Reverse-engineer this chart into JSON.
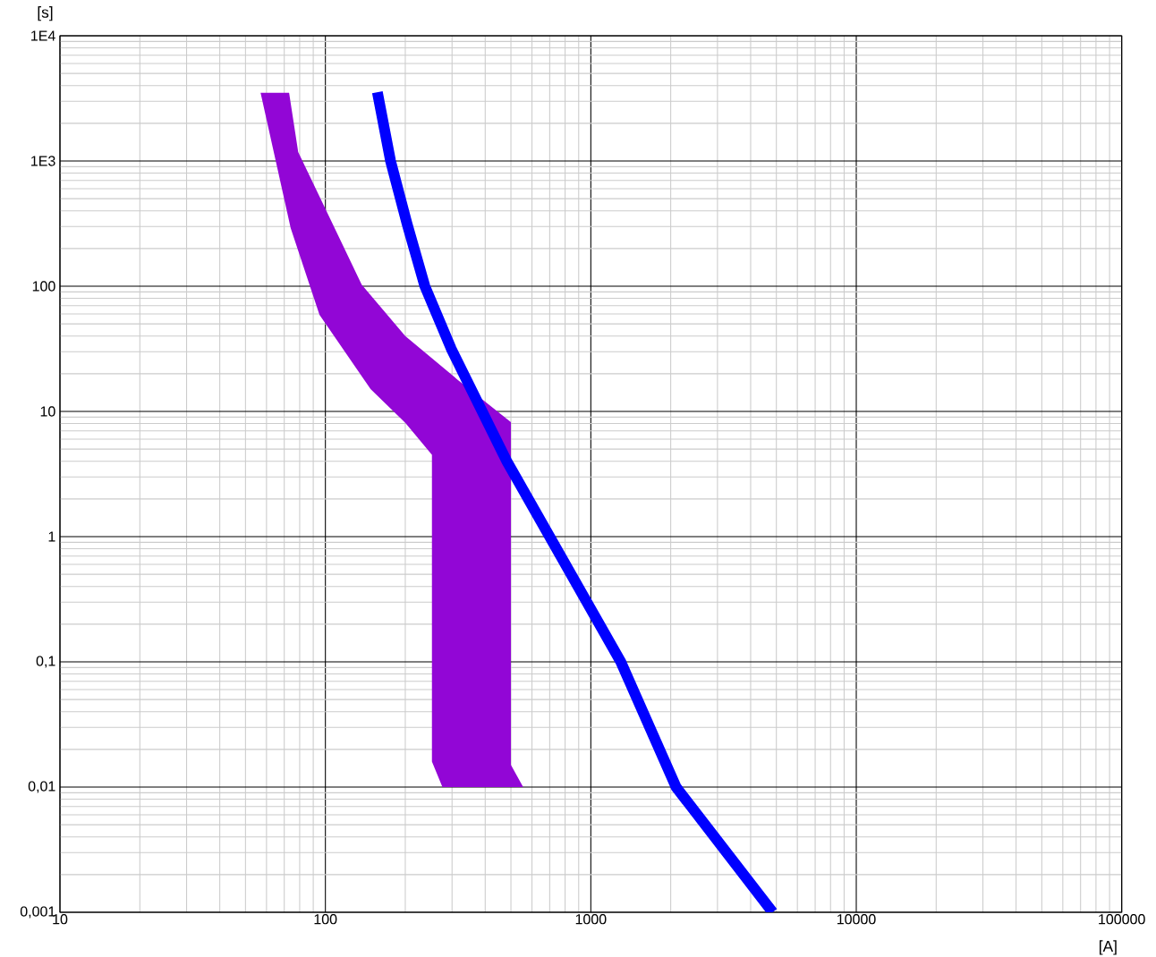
{
  "chart_data": {
    "type": "line",
    "xlabel": "[A]",
    "ylabel": "[s]",
    "log": "xy",
    "grid": true,
    "xlim": [
      10,
      100000
    ],
    "ylim": [
      0.001,
      10000
    ],
    "xticks": [
      10,
      100,
      1000,
      10000,
      100000
    ],
    "yticks": [
      {
        "value": 0.001,
        "label": "0,001"
      },
      {
        "value": 0.01,
        "label": "0,01"
      },
      {
        "value": 0.1,
        "label": "0,1"
      },
      1,
      10,
      100,
      {
        "value": 1000,
        "label": "1E3"
      },
      {
        "value": 10000,
        "label": "1E4"
      }
    ],
    "series": [
      {
        "type": "area",
        "color": "#9206d6",
        "x": [
          57,
          74,
          95,
          148,
          200,
          252,
          252,
          276,
          556,
          500,
          500,
          316,
          200,
          137,
          79,
          73
        ],
        "values": [
          3500,
          291,
          59,
          15.1,
          8.1,
          4.5,
          0.016,
          0.01,
          0.01,
          0.015,
          8.2,
          17.8,
          40,
          103,
          1180,
          3500
        ]
      },
      {
        "color": "#0000ff",
        "x": [
          157,
          176,
          203,
          237,
          298,
          481,
          1297,
          2095,
          4842
        ],
        "values": [
          3548,
          1000,
          316,
          100,
          31.6,
          4.05,
          0.1,
          0.01,
          0.001
        ]
      }
    ]
  }
}
